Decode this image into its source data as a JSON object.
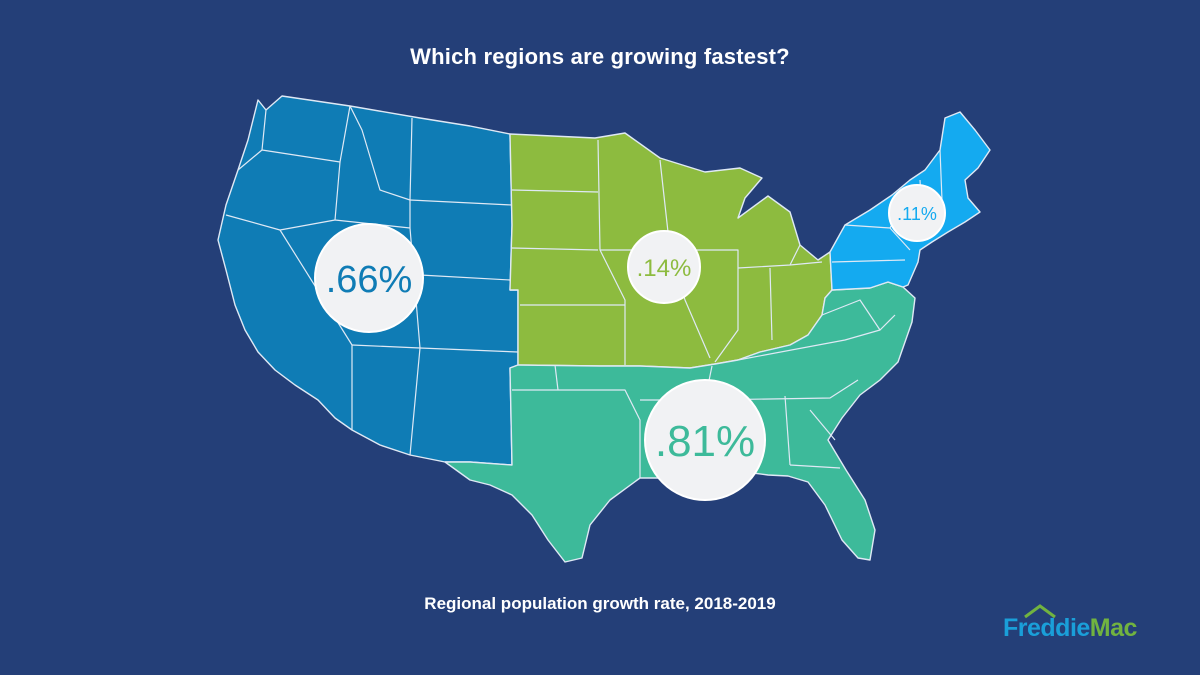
{
  "title": "Which regions are growing fastest?",
  "caption": "Regional population growth rate, 2018-2019",
  "logo": {
    "part1": "Freddie",
    "part2": "Mac"
  },
  "colors": {
    "background": "#243f78",
    "west": "#0f7cb5",
    "midwest": "#8dbb3f",
    "south": "#3dba9a",
    "northeast": "#14aaf0",
    "bubble": "#f1f2f4",
    "border": "#dfe9f5"
  },
  "regions": [
    {
      "key": "west",
      "value_label": ".66%",
      "value": 0.66
    },
    {
      "key": "midwest",
      "value_label": ".14%",
      "value": 0.14
    },
    {
      "key": "south",
      "value_label": ".81%",
      "value": 0.81
    },
    {
      "key": "northeast",
      "value_label": ".11%",
      "value": 0.11
    }
  ]
}
